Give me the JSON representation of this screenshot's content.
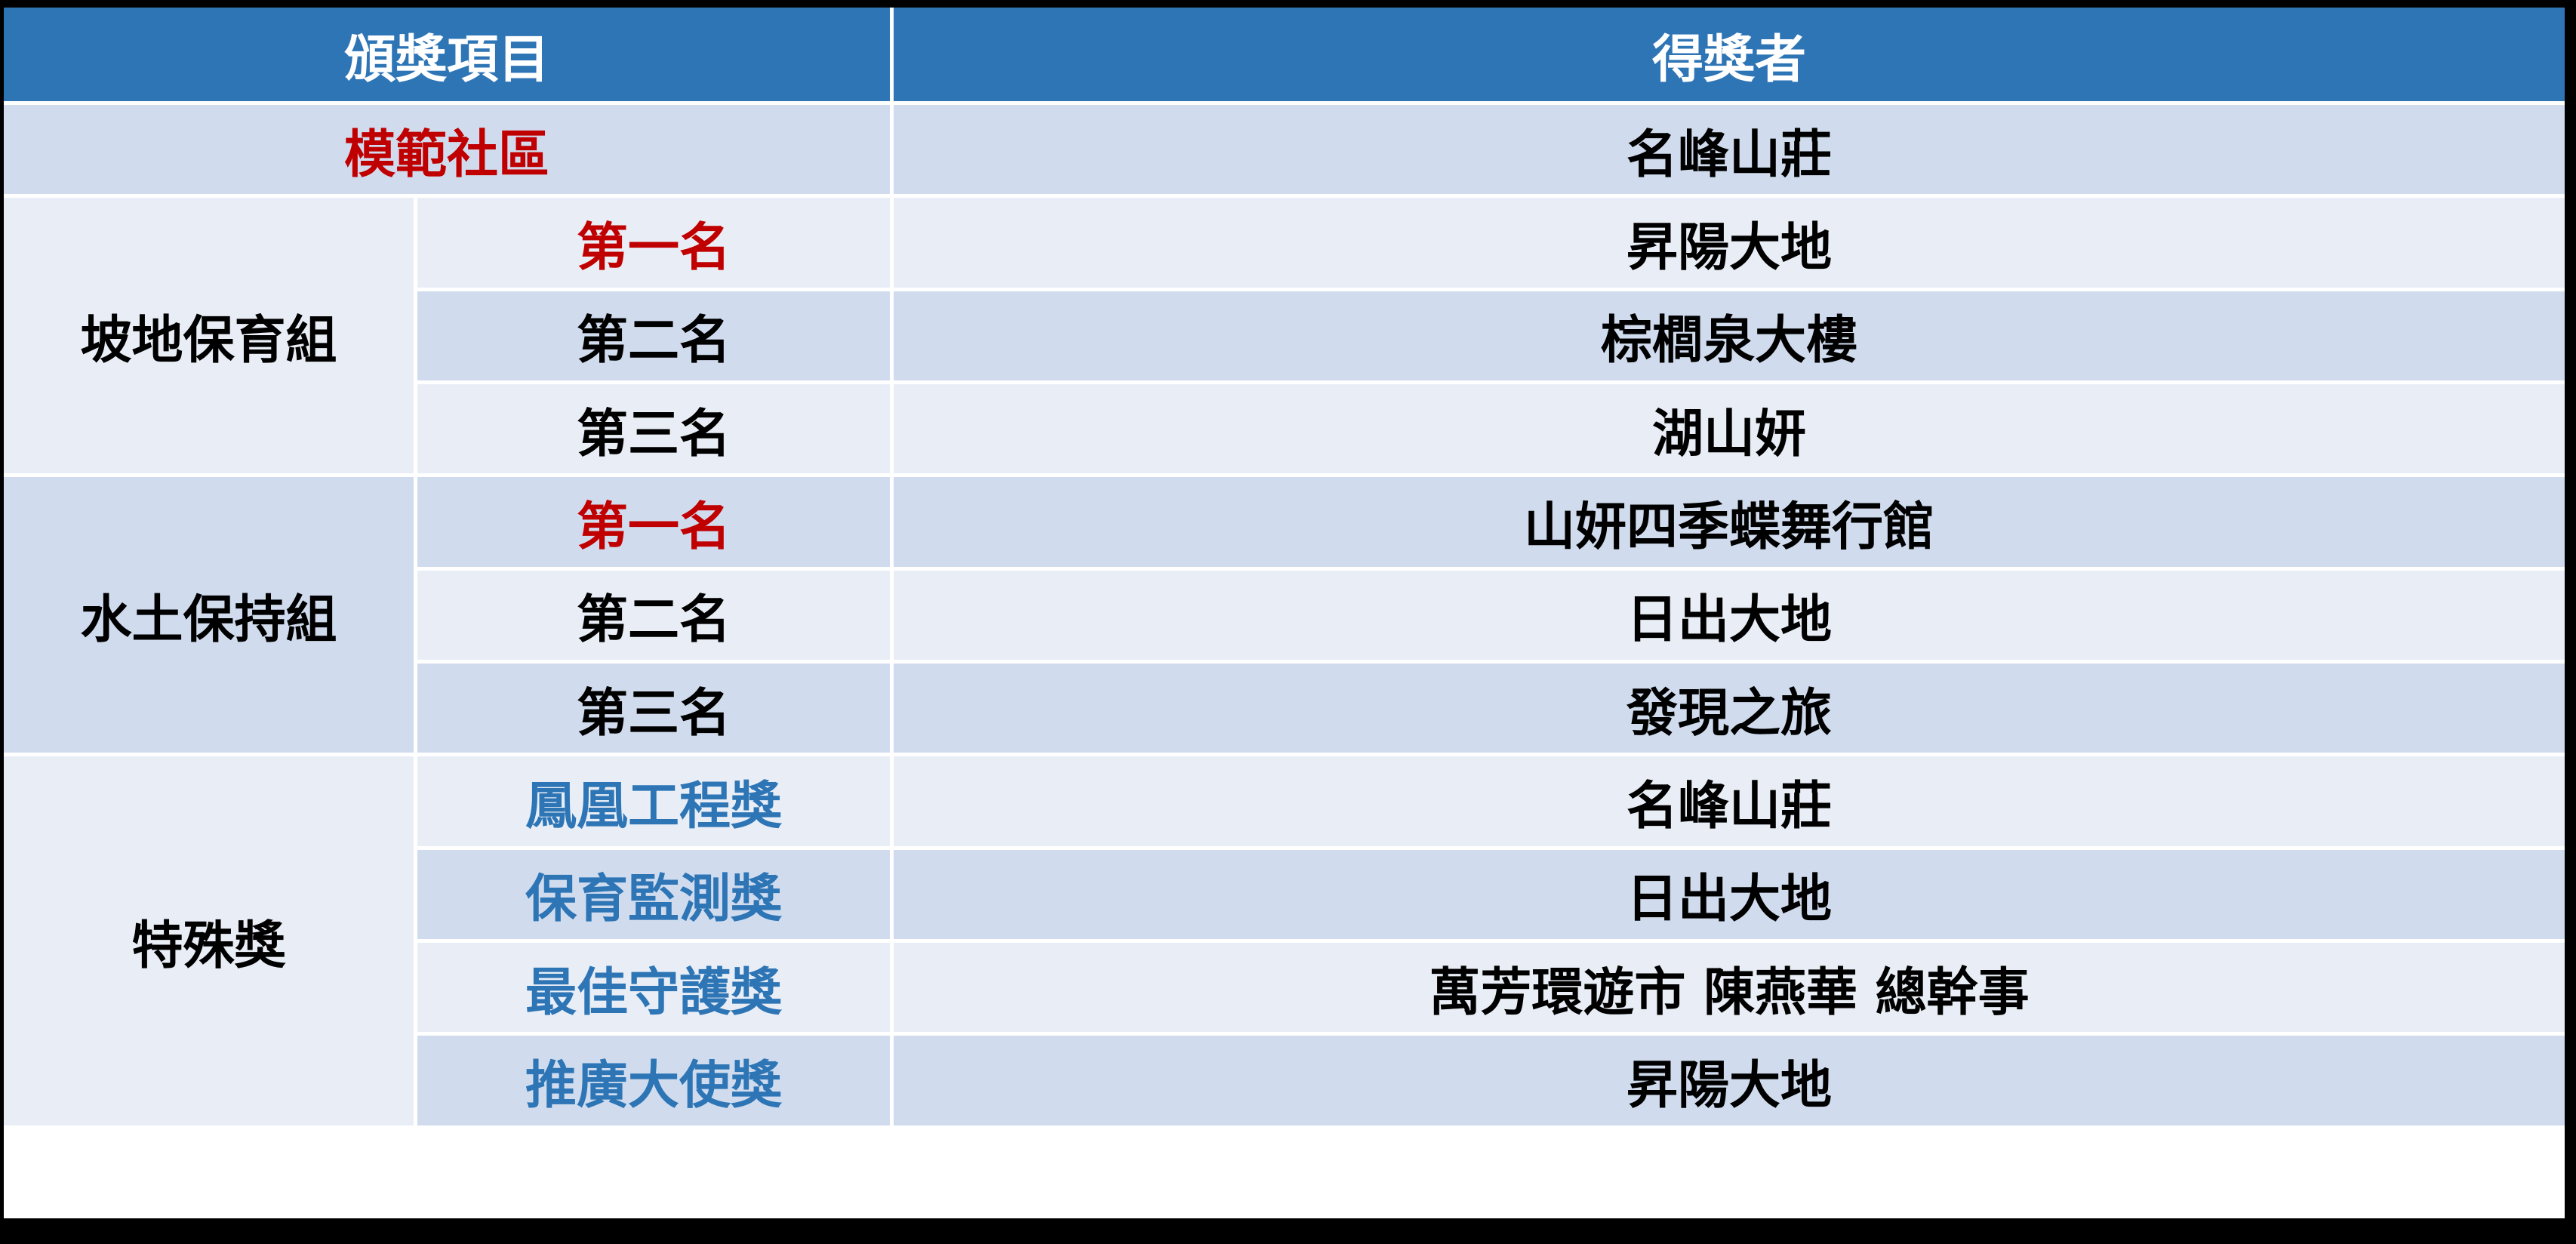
{
  "header": {
    "award_item": "頒獎項目",
    "winner": "得獎者"
  },
  "model_community": {
    "label": "模範社區",
    "winner": "名峰山莊"
  },
  "groups": [
    {
      "name": "坡地保育組",
      "rows": [
        {
          "rank": "第一名",
          "winner": "昇陽大地"
        },
        {
          "rank": "第二名",
          "winner": "棕櫚泉大樓"
        },
        {
          "rank": "第三名",
          "winner": "湖山妍"
        }
      ]
    },
    {
      "name": "水土保持組",
      "rows": [
        {
          "rank": "第一名",
          "winner": "山妍四季蝶舞行館"
        },
        {
          "rank": "第二名",
          "winner": "日出大地"
        },
        {
          "rank": "第三名",
          "winner": "發現之旅"
        }
      ]
    },
    {
      "name": "特殊獎",
      "rows": [
        {
          "rank": "鳳凰工程獎",
          "winner": "名峰山莊"
        },
        {
          "rank": "保育監測獎",
          "winner": "日出大地"
        },
        {
          "rank": "最佳守護獎",
          "winner": "萬芳環遊市 陳燕華 總幹事"
        },
        {
          "rank": "推廣大使獎",
          "winner": "昇陽大地"
        }
      ]
    }
  ],
  "colors": {
    "header": "#2E75B6",
    "highlight_red": "#C00000",
    "special_blue": "#2E75B6",
    "row_dark": "#D0DCEE",
    "row_light": "#E9EEF6"
  }
}
